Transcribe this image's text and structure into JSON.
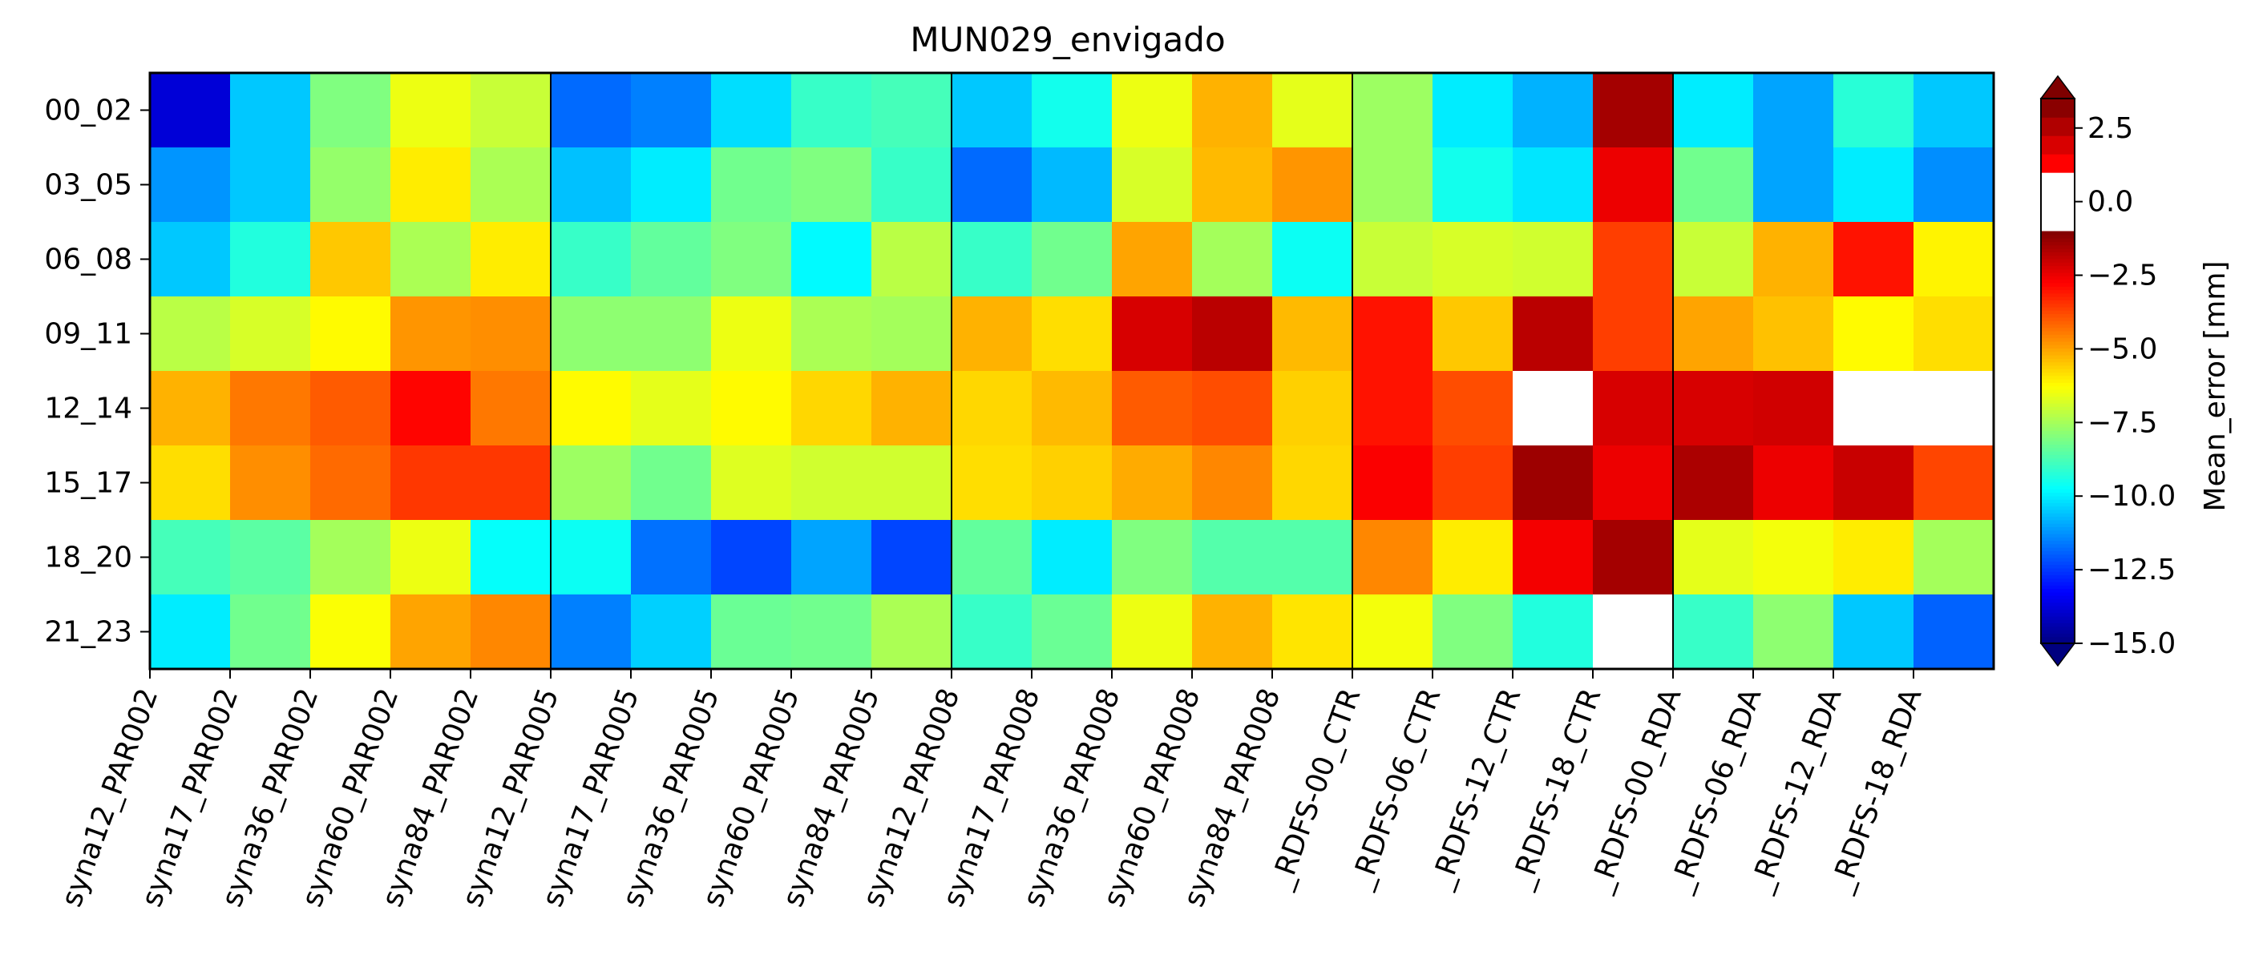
{
  "chart_data": {
    "type": "heatmap",
    "title": "MUN029_envigado",
    "xlabel": "",
    "ylabel": "",
    "x_categories": [
      "syna12_PAR002",
      "syna17_PAR002",
      "syna36_PAR002",
      "syna60_PAR002",
      "syna84_PAR002",
      "syna12_PAR005",
      "syna17_PAR005",
      "syna36_PAR005",
      "syna60_PAR005",
      "syna84_PAR005",
      "syna12_PAR008",
      "syna17_PAR008",
      "syna36_PAR008",
      "syna60_PAR008",
      "syna84_PAR008",
      "_RDFS-00_CTR",
      "_RDFS-06_CTR",
      "_RDFS-12_CTR",
      "_RDFS-18_CTR",
      "_RDFS-00_RDA",
      "_RDFS-06_RDA",
      "_RDFS-12_RDA",
      "_RDFS-18_RDA"
    ],
    "y_categories": [
      "00_02",
      "03_05",
      "06_08",
      "09_11",
      "12_14",
      "15_17",
      "18_20",
      "21_23"
    ],
    "group_separators_after_column": [
      4,
      9,
      14,
      18
    ],
    "values": [
      [
        -13.8,
        -10.5,
        -8.0,
        -6.5,
        -7.0,
        -11.8,
        -11.5,
        -10.2,
        -9.0,
        -8.8,
        -10.5,
        -9.5,
        -6.5,
        -5.2,
        -6.6,
        -7.6,
        -10.0,
        -10.8,
        -1.5,
        -10.0,
        -11.0,
        -9.2,
        -10.5
      ],
      [
        -11.2,
        -10.5,
        -7.7,
        -6.0,
        -7.4,
        -10.6,
        -10.0,
        -8.2,
        -8.0,
        -9.0,
        -11.8,
        -10.7,
        -6.8,
        -5.3,
        -4.8,
        -7.6,
        -9.5,
        -10.1,
        -2.5,
        -8.2,
        -11.0,
        -10.0,
        -11.3
      ],
      [
        -10.5,
        -9.3,
        -5.5,
        -7.4,
        -6.0,
        -9.0,
        -8.4,
        -8.0,
        -9.8,
        -7.2,
        -9.0,
        -8.2,
        -5.0,
        -7.5,
        -9.6,
        -7.0,
        -6.8,
        -6.9,
        -3.6,
        -7.0,
        -5.2,
        -3.0,
        -6.1
      ],
      [
        -7.2,
        -6.8,
        -6.2,
        -4.8,
        -4.7,
        -7.8,
        -7.8,
        -6.5,
        -7.4,
        -7.5,
        -5.2,
        -5.8,
        -2.2,
        -1.8,
        -5.3,
        -3.0,
        -5.5,
        -1.8,
        -3.6,
        -5.0,
        -5.4,
        -6.2,
        -5.8
      ],
      [
        -5.2,
        -4.4,
        -4.0,
        -2.8,
        -4.4,
        -6.2,
        -6.6,
        -6.2,
        -5.7,
        -5.2,
        -5.7,
        -5.3,
        -4.0,
        -3.8,
        -5.6,
        -3.0,
        -3.8,
        null,
        -2.2,
        -2.2,
        -2.1,
        null,
        null
      ],
      [
        -5.8,
        -4.7,
        -4.2,
        -3.5,
        -3.5,
        -7.6,
        -8.2,
        -6.7,
        -6.9,
        -6.9,
        -5.8,
        -5.6,
        -5.1,
        -4.6,
        -5.7,
        -2.7,
        -3.6,
        -1.4,
        -2.5,
        -1.6,
        -2.5,
        -2.0,
        -3.7
      ],
      [
        -8.8,
        -8.5,
        -7.5,
        -6.5,
        -9.7,
        -9.6,
        -11.7,
        -12.3,
        -11.0,
        -12.3,
        -8.4,
        -10.0,
        -8.0,
        -8.6,
        -8.6,
        -4.6,
        -6.0,
        -2.6,
        -1.5,
        -6.6,
        -6.4,
        -6.0,
        -7.5
      ],
      [
        -10.0,
        -8.2,
        -6.3,
        -5.0,
        -4.6,
        -11.5,
        -10.4,
        -8.3,
        -8.2,
        -7.4,
        -9.0,
        -8.3,
        -6.5,
        -5.2,
        -5.9,
        -6.4,
        -8.0,
        -9.3,
        null,
        -9.0,
        -7.8,
        -10.5,
        -11.9
      ]
    ],
    "missing_value_color": "#ffffff",
    "colormap": "jet",
    "colorbar": {
      "label": "Mean_error [mm]",
      "ticks": [
        "2.5",
        "0.0",
        "−2.5",
        "−5.0",
        "−7.5",
        "−10.0",
        "−12.5",
        "−15.0"
      ],
      "tick_values": [
        2.5,
        0.0,
        -2.5,
        -5.0,
        -7.5,
        -10.0,
        -12.5,
        -15.0
      ],
      "range": [
        -15,
        3.5
      ],
      "extend": "both",
      "white_band": [
        -1,
        1
      ],
      "positive_colors": [
        "#ff0000",
        "#d80000",
        "#b00000",
        "#8a0000"
      ],
      "min_extend_color": "#00007f",
      "max_extend_color": "#7f0000"
    }
  }
}
